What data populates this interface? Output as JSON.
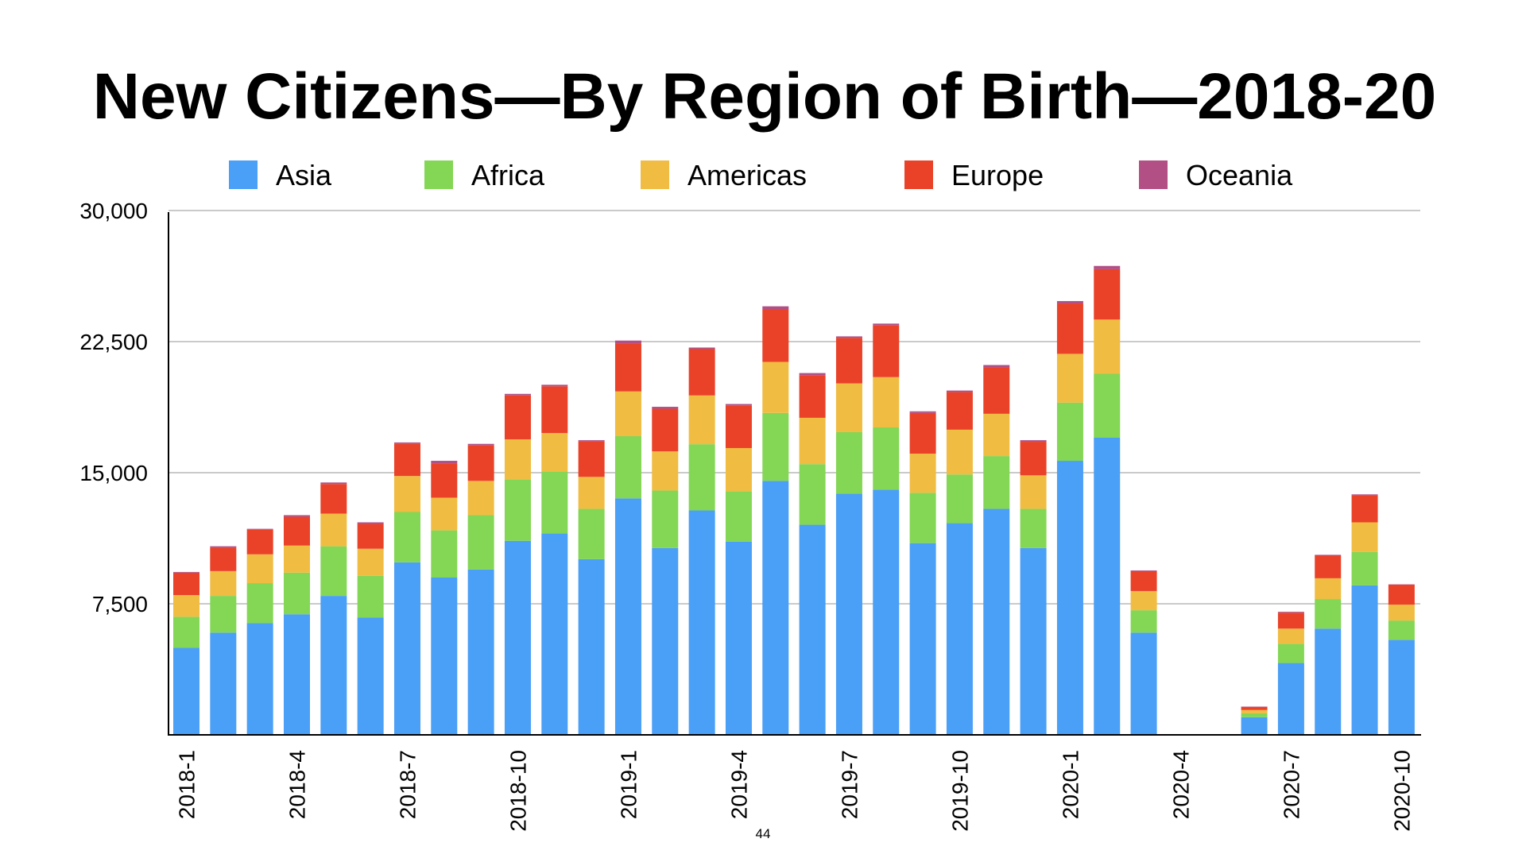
{
  "slide": {
    "page_number": "44"
  },
  "chart_data": {
    "type": "bar",
    "stacked": true,
    "title": "New Citizens—By Region of Birth—2018-20",
    "xlabel": "",
    "ylabel": "",
    "ylim": [
      0,
      30000
    ],
    "yticks": [
      0,
      7500,
      15000,
      22500,
      30000
    ],
    "ytick_labels": [
      "",
      "7,500",
      "15,000",
      "22,500",
      "30,000"
    ],
    "grid": true,
    "legend_position": "top",
    "categories": [
      "2018-1",
      "2018-2",
      "2018-3",
      "2018-4",
      "2018-5",
      "2018-6",
      "2018-7",
      "2018-8",
      "2018-9",
      "2018-10",
      "2018-11",
      "2018-12",
      "2019-1",
      "2019-2",
      "2019-3",
      "2019-4",
      "2019-5",
      "2019-6",
      "2019-7",
      "2019-8",
      "2019-9",
      "2019-10",
      "2019-11",
      "2019-12",
      "2020-1",
      "2020-2",
      "2020-3",
      "2020-4",
      "2020-5",
      "2020-6",
      "2020-7",
      "2020-8",
      "2020-9",
      "2020-10"
    ],
    "xtick_labels_shown": [
      "2018-1",
      "2018-4",
      "2018-7",
      "2018-10",
      "2019-1",
      "2019-4",
      "2019-7",
      "2019-10",
      "2020-1",
      "2020-4",
      "2020-7",
      "2020-10"
    ],
    "series": [
      {
        "name": "Asia",
        "color": "#4A9FF6",
        "values": [
          4980,
          5850,
          6400,
          6900,
          7950,
          6720,
          9870,
          9000,
          9460,
          11100,
          11520,
          10050,
          13530,
          10690,
          12840,
          11060,
          14530,
          12020,
          13800,
          14030,
          10970,
          12110,
          12930,
          10690,
          15680,
          17000,
          5850,
          0,
          0,
          1010,
          4110,
          6080,
          8550,
          5440
        ]
      },
      {
        "name": "Africa",
        "color": "#84D655",
        "values": [
          1780,
          2100,
          2280,
          2380,
          2840,
          2380,
          2880,
          2700,
          3110,
          3520,
          3560,
          2880,
          3560,
          3290,
          3790,
          2880,
          3890,
          3470,
          3520,
          3560,
          2880,
          2790,
          3020,
          2240,
          3330,
          3660,
          1280,
          0,
          0,
          220,
          1100,
          1690,
          1920,
          1100
        ]
      },
      {
        "name": "Americas",
        "color": "#F0BC42",
        "values": [
          1240,
          1420,
          1650,
          1550,
          1870,
          1550,
          2060,
          1870,
          1960,
          2290,
          2190,
          1830,
          2560,
          2240,
          2790,
          2470,
          2920,
          2650,
          2790,
          2880,
          2240,
          2560,
          2420,
          1920,
          2790,
          3100,
          1100,
          0,
          0,
          190,
          870,
          1190,
          1690,
          910
        ]
      },
      {
        "name": "Europe",
        "color": "#E94228",
        "values": [
          1280,
          1340,
          1430,
          1650,
          1690,
          1420,
          1840,
          1970,
          2030,
          2510,
          2670,
          2030,
          2740,
          2440,
          2670,
          2420,
          3000,
          2440,
          2600,
          2970,
          2330,
          2150,
          2650,
          1920,
          2880,
          2880,
          1140,
          0,
          0,
          180,
          910,
          1290,
          1550,
          1140
        ]
      },
      {
        "name": "Oceania",
        "color": "#B25085",
        "values": [
          40,
          80,
          30,
          90,
          90,
          90,
          80,
          140,
          90,
          90,
          90,
          70,
          170,
          110,
          70,
          100,
          180,
          120,
          90,
          90,
          90,
          90,
          140,
          90,
          140,
          190,
          40,
          0,
          0,
          20,
          50,
          50,
          50,
          20
        ]
      }
    ]
  }
}
